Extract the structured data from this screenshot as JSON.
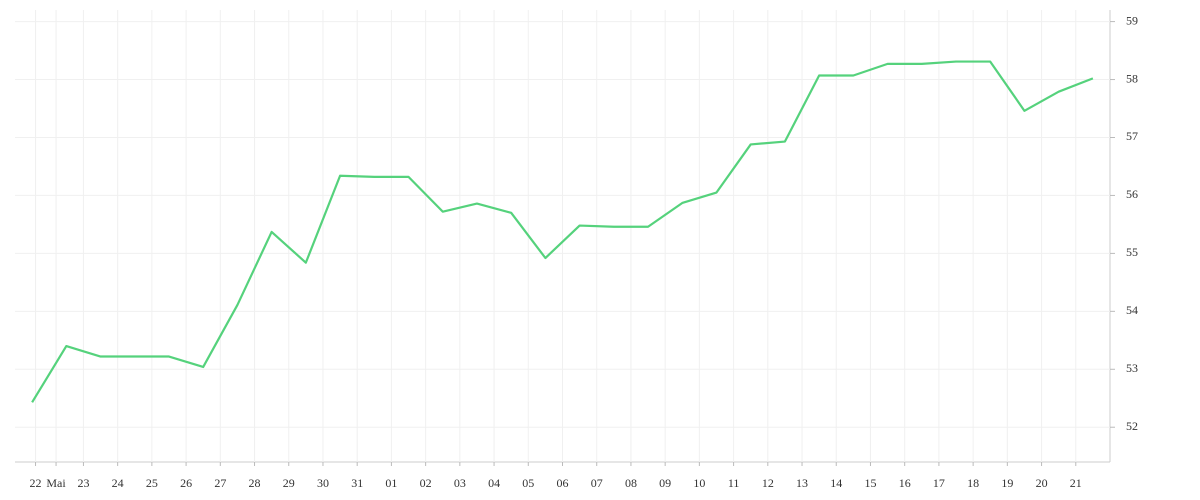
{
  "chart_data": {
    "type": "line",
    "x": [
      0,
      1,
      2,
      3,
      4,
      5,
      6,
      7,
      8,
      9,
      10,
      11,
      12,
      13,
      14,
      15,
      16,
      17,
      18,
      19,
      20,
      21,
      22,
      23,
      24,
      25,
      26,
      27,
      28,
      29,
      30,
      31
    ],
    "series": [
      {
        "color": "#55d27c",
        "values": [
          52.43,
          53.4,
          53.22,
          53.22,
          53.22,
          53.04,
          54.11,
          55.37,
          54.84,
          56.34,
          56.32,
          56.32,
          55.72,
          55.86,
          55.7,
          54.92,
          55.48,
          55.46,
          55.46,
          55.87,
          56.05,
          56.88,
          56.93,
          58.07,
          58.07,
          58.27,
          58.27,
          58.31,
          58.31,
          57.46,
          57.79,
          58.02
        ]
      }
    ],
    "xlim": [
      -0.5,
      31.5
    ],
    "xticks": [
      {
        "value": 0.1,
        "label": "22"
      },
      {
        "value": 0.7,
        "label": "Mai"
      },
      {
        "value": 1.5,
        "label": "23"
      },
      {
        "value": 2.5,
        "label": "24"
      },
      {
        "value": 3.5,
        "label": "25"
      },
      {
        "value": 4.5,
        "label": "26"
      },
      {
        "value": 5.5,
        "label": "27"
      },
      {
        "value": 6.5,
        "label": "28"
      },
      {
        "value": 7.5,
        "label": "29"
      },
      {
        "value": 8.5,
        "label": "30"
      },
      {
        "value": 9.5,
        "label": "31"
      },
      {
        "value": 10.5,
        "label": "01"
      },
      {
        "value": 11.5,
        "label": "02"
      },
      {
        "value": 12.5,
        "label": "03"
      },
      {
        "value": 13.5,
        "label": "04"
      },
      {
        "value": 14.5,
        "label": "05"
      },
      {
        "value": 15.5,
        "label": "06"
      },
      {
        "value": 16.5,
        "label": "07"
      },
      {
        "value": 17.5,
        "label": "08"
      },
      {
        "value": 18.5,
        "label": "09"
      },
      {
        "value": 19.5,
        "label": "10"
      },
      {
        "value": 20.5,
        "label": "11"
      },
      {
        "value": 21.5,
        "label": "12"
      },
      {
        "value": 22.5,
        "label": "13"
      },
      {
        "value": 23.5,
        "label": "14"
      },
      {
        "value": 24.5,
        "label": "15"
      },
      {
        "value": 25.5,
        "label": "16"
      },
      {
        "value": 26.5,
        "label": "17"
      },
      {
        "value": 27.5,
        "label": "18"
      },
      {
        "value": 28.5,
        "label": "19"
      },
      {
        "value": 29.5,
        "label": "20"
      },
      {
        "value": 30.5,
        "label": "21"
      }
    ],
    "ylim": [
      51.4,
      59.2
    ],
    "yticks": [
      52,
      53,
      54,
      55,
      56,
      57,
      58,
      59
    ],
    "grid": true
  }
}
